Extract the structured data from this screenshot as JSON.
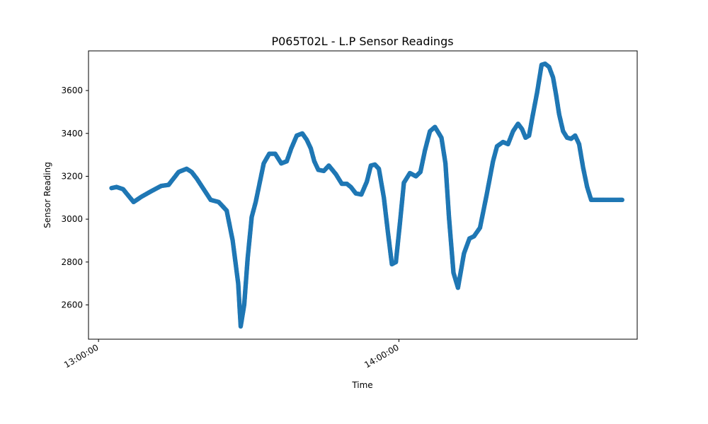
{
  "chart_data": {
    "type": "scatter",
    "title": "P065T02L - L.P Sensor Readings",
    "xlabel": "Time",
    "ylabel": "Sensor Reading",
    "x_unit": "minutes since 13:00:00",
    "xlim": [
      -2,
      107.6
    ],
    "ylim": [
      2440,
      3785
    ],
    "xticks": [
      {
        "value": 0,
        "label": "13:00:00"
      },
      {
        "value": 60,
        "label": "14:00:00"
      }
    ],
    "yticks": [
      2600,
      2800,
      3000,
      3200,
      3400,
      3600
    ],
    "grid": false,
    "legend": "none",
    "color": "#1f77b4",
    "x": [
      2.6,
      3.6,
      4.9,
      5.6,
      7.0,
      8.6,
      10.5,
      12.5,
      14.0,
      16.0,
      17.6,
      18.6,
      19.6,
      21.0,
      22.4,
      24.0,
      25.6,
      26.8,
      27.9,
      28.4,
      29.1,
      29.8,
      30.6,
      31.4,
      32.2,
      33.0,
      34.1,
      35.3,
      36.5,
      37.6,
      38.5,
      39.6,
      40.7,
      41.6,
      42.4,
      43.1,
      43.9,
      45.0,
      46.0,
      47.4,
      48.6,
      49.6,
      50.4,
      51.4,
      52.5,
      53.6,
      54.4,
      55.2,
      56.0,
      57.0,
      57.8,
      58.6,
      59.4,
      60.2,
      61.0,
      62.2,
      63.4,
      64.3,
      65.2,
      66.2,
      67.2,
      68.5,
      69.3,
      70.0,
      70.9,
      71.8,
      73.0,
      74.1,
      75.0,
      76.2,
      77.5,
      78.8,
      79.6,
      80.8,
      81.8,
      82.8,
      83.8,
      84.6,
      85.3,
      86.0,
      86.7,
      87.6,
      88.5,
      89.2,
      90.0,
      90.8,
      91.4,
      92.0,
      92.8,
      93.6,
      94.4,
      95.2,
      96.0,
      96.8,
      97.6,
      98.4,
      99.3,
      100.2,
      101.1,
      101.7,
      102.3,
      103.1,
      103.9,
      104.6
    ],
    "y": [
      3145,
      3150,
      3140,
      3120,
      3080,
      3105,
      3130,
      3155,
      3160,
      3220,
      3235,
      3220,
      3190,
      3140,
      3090,
      3080,
      3040,
      2900,
      2700,
      2500,
      2600,
      2820,
      3010,
      3080,
      3170,
      3260,
      3305,
      3305,
      3260,
      3270,
      3330,
      3390,
      3400,
      3370,
      3330,
      3270,
      3230,
      3225,
      3250,
      3210,
      3165,
      3165,
      3150,
      3120,
      3115,
      3175,
      3250,
      3255,
      3235,
      3100,
      2940,
      2790,
      2800,
      2980,
      3170,
      3215,
      3200,
      3220,
      3320,
      3410,
      3430,
      3380,
      3260,
      3010,
      2750,
      2680,
      2840,
      2910,
      2920,
      2960,
      3110,
      3270,
      3340,
      3360,
      3350,
      3410,
      3445,
      3420,
      3380,
      3390,
      3480,
      3590,
      3720,
      3725,
      3710,
      3660,
      3580,
      3490,
      3410,
      3380,
      3375,
      3390,
      3350,
      3240,
      3150,
      3090,
      3090,
      3090,
      3090,
      3090,
      3090,
      3090,
      3090,
      3090
    ]
  }
}
